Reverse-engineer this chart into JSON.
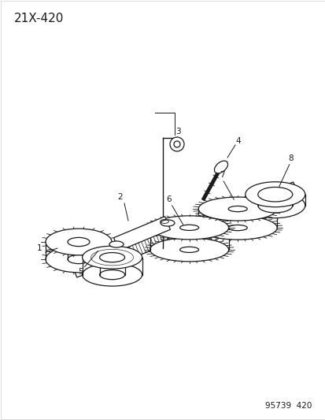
{
  "title": "21X-420",
  "footer": "95739  420",
  "bg_color": "#ffffff",
  "line_color": "#1a1a1a",
  "figsize": [
    4.14,
    5.33
  ],
  "dpi": 100,
  "border_color": "#cccccc"
}
